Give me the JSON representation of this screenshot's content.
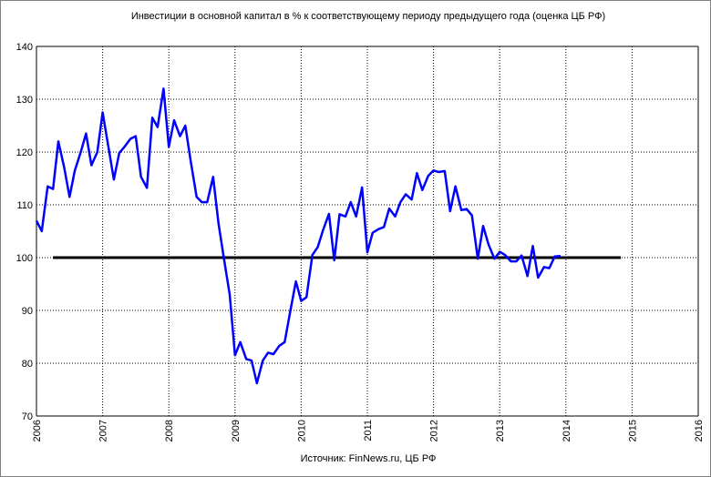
{
  "chart_data": {
    "type": "line",
    "title": "Инвестиции в основной капитал в % к соответствующему периоду предыдущего года (оценка ЦБ РФ)",
    "source_note": "Источник: FinNews.ru, ЦБ РФ",
    "xlabel": "",
    "ylabel": "",
    "xlim": [
      2006,
      2016
    ],
    "ylim": [
      70,
      140
    ],
    "x_ticks": [
      "2006",
      "2007",
      "2008",
      "2009",
      "2010",
      "2011",
      "2012",
      "2013",
      "2014",
      "2015",
      "2016"
    ],
    "y_ticks": [
      "70",
      "80",
      "90",
      "100",
      "110",
      "120",
      "130",
      "140"
    ],
    "grid": true,
    "legend": "none",
    "colors": {
      "series": "#0000ff",
      "reference": "#000000",
      "grid": "#000000",
      "frame": "#808080"
    },
    "series": [
      {
        "x": [
          2006.0,
          2006.08,
          2006.17,
          2006.25,
          2006.33,
          2006.42,
          2006.5,
          2006.58,
          2006.67,
          2006.75,
          2006.83,
          2006.92,
          2007.0,
          2007.08,
          2007.17,
          2007.25,
          2007.33,
          2007.42,
          2007.5,
          2007.58,
          2007.67,
          2007.75,
          2007.83,
          2007.92,
          2008.0,
          2008.08,
          2008.17,
          2008.25,
          2008.33,
          2008.42,
          2008.5,
          2008.58,
          2008.67,
          2008.75,
          2008.83,
          2008.92,
          2009.0,
          2009.08,
          2009.17,
          2009.25,
          2009.33,
          2009.42,
          2009.5,
          2009.58,
          2009.67,
          2009.75,
          2009.83,
          2009.92,
          2010.0,
          2010.08,
          2010.17,
          2010.25,
          2010.33,
          2010.42,
          2010.5,
          2010.58,
          2010.67,
          2010.75,
          2010.83,
          2010.92,
          2011.0,
          2011.08,
          2011.17,
          2011.25,
          2011.33,
          2011.42,
          2011.5,
          2011.58,
          2011.67,
          2011.75,
          2011.83,
          2011.92,
          2012.0,
          2012.08,
          2012.17,
          2012.25,
          2012.33,
          2012.42,
          2012.5,
          2012.58,
          2012.67,
          2012.75,
          2012.83,
          2012.92,
          2013.0,
          2013.08,
          2013.17,
          2013.25,
          2013.33,
          2013.42,
          2013.5,
          2013.58,
          2013.67,
          2013.75,
          2013.83,
          2013.92
        ],
        "values": [
          107,
          105,
          113.5,
          113,
          122,
          117,
          111.5,
          116.5,
          120,
          123.5,
          117.5,
          120,
          127.5,
          121.5,
          114.8,
          119.8,
          121,
          122.5,
          123,
          115.3,
          113.2,
          126.5,
          124.7,
          132,
          121,
          126,
          123,
          125,
          118.3,
          111.5,
          110.5,
          110.5,
          115.3,
          106.5,
          100,
          93,
          81.5,
          84,
          80.8,
          80.5,
          76.2,
          80.5,
          82,
          81.7,
          83.3,
          84,
          89.5,
          95.5,
          91.8,
          92.5,
          100.5,
          102,
          105.2,
          108.3,
          99.5,
          108.2,
          107.8,
          110.5,
          107.8,
          113.3,
          101,
          104.7,
          105.4,
          105.8,
          109.3,
          107.8,
          110.5,
          112,
          111,
          116,
          112.8,
          115.5,
          116.5,
          116.2,
          116.4,
          108.8,
          113.5,
          109,
          109.2,
          108,
          99.8,
          106,
          102.5,
          99.8,
          101.1,
          100.5,
          99.3,
          99.3,
          100.4,
          96.5,
          102.2,
          96.2,
          98.2,
          98,
          100.2,
          100.3
        ]
      }
    ],
    "reference_line": {
      "y": 100,
      "x": [
        2006.25,
        2014.83
      ]
    }
  }
}
